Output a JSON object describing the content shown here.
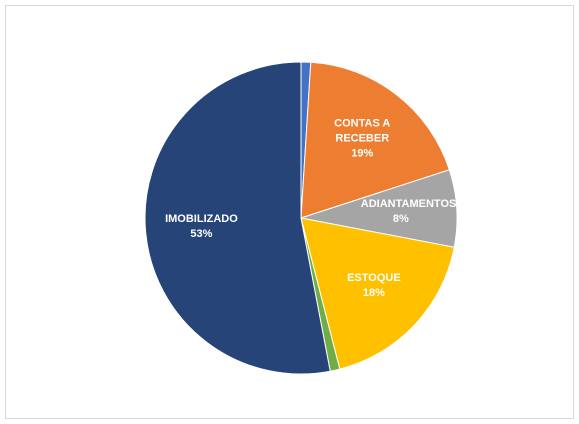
{
  "chart_data": {
    "type": "pie",
    "categories": [
      null,
      "CONTAS A RECEBER",
      "ADIANTAMENTOS",
      "ESTOQUE",
      null,
      "IMOBILIZADO"
    ],
    "values": [
      1,
      19,
      8,
      18,
      1,
      53
    ],
    "value_labels": [
      null,
      "19%",
      "8%",
      "18%",
      null,
      "53%"
    ],
    "colors": [
      "#4472c4",
      "#ed7d31",
      "#a5a5a5",
      "#ffc000",
      "#70ad47",
      "#264478"
    ]
  }
}
